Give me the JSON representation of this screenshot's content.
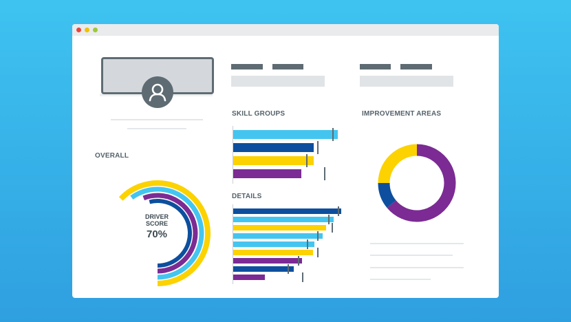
{
  "window": {
    "controls": [
      "close",
      "minimize",
      "maximize"
    ]
  },
  "colors": {
    "background": "#3ec3f0",
    "yellow": "#fcd200",
    "light_blue": "#44c5ef",
    "dark_blue": "#0d4f9e",
    "purple": "#7b2b93",
    "slate": "#5e6b73"
  },
  "profile": {
    "avatar_icon": "user-icon"
  },
  "headings": {
    "overall": "OVERALL",
    "skill_groups": "SKILL GROUPS",
    "details": "DETAILS",
    "improvement_areas": "IMPROVEMENT AREAS"
  },
  "overall": {
    "label_line1": "DRIVER",
    "label_line2": "SCORE",
    "value": "70%",
    "score": 0.7,
    "rings": [
      {
        "color": "yellow",
        "fraction": 0.63
      },
      {
        "color": "light_blue",
        "fraction": 0.6
      },
      {
        "color": "purple",
        "fraction": 0.56
      },
      {
        "color": "dark_blue",
        "fraction": 0.54
      }
    ]
  },
  "skill_groups": {
    "bars": [
      {
        "color": "light_blue",
        "value": 1.0,
        "marker": 0.95
      },
      {
        "color": "dark_blue",
        "value": 0.77,
        "marker": 0.8
      },
      {
        "color": "yellow",
        "value": 0.77,
        "marker": 0.7
      },
      {
        "color": "purple",
        "value": 0.65,
        "marker": 0.87
      }
    ]
  },
  "details": {
    "bars": [
      {
        "color": "dark_blue",
        "value": 1.0,
        "marker": 0.97
      },
      {
        "color": "light_blue",
        "value": 0.93,
        "marker": 0.88
      },
      {
        "color": "yellow",
        "value": 0.86,
        "marker": 0.91
      },
      {
        "color": "light_blue",
        "value": 0.83,
        "marker": 0.78
      },
      {
        "color": "light_blue",
        "value": 0.75,
        "marker": 0.68
      },
      {
        "color": "yellow",
        "value": 0.74,
        "marker": 0.78
      },
      {
        "color": "purple",
        "value": 0.64,
        "marker": 0.6
      },
      {
        "color": "dark_blue",
        "value": 0.56,
        "marker": 0.5
      },
      {
        "color": "purple",
        "value": 0.29,
        "marker": 0.64
      }
    ]
  },
  "improvement_areas": {
    "segments": [
      {
        "color": "purple",
        "value": 0.64
      },
      {
        "color": "dark_blue",
        "value": 0.11
      },
      {
        "color": "yellow",
        "value": 0.25
      }
    ]
  }
}
